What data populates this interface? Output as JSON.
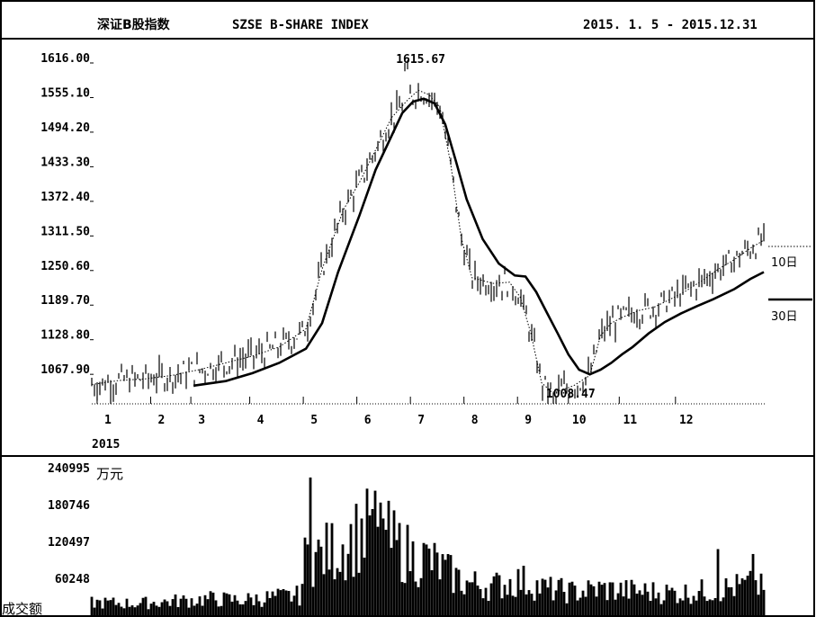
{
  "chart_data": [
    {
      "type": "line",
      "title_cn": "深证B股指数",
      "title_en": "SZSE B-SHARE INDEX",
      "date_range": "2015. 1. 5 - 2015.12.31",
      "year_label": "2015",
      "x_ticks": [
        "1",
        "2",
        "3",
        "4",
        "5",
        "6",
        "7",
        "8",
        "9",
        "10",
        "11",
        "12"
      ],
      "y_ticks": [
        "1616.00",
        "1555.10",
        "1494.20",
        "1433.30",
        "1372.40",
        "1311.50",
        "1250.60",
        "1189.70",
        "1128.80",
        "1067.90"
      ],
      "ylim": [
        1008,
        1616
      ],
      "annotations": [
        {
          "text": "1615.67",
          "month": 5.85,
          "value": 1615.67
        },
        {
          "text": "1008.47",
          "month": 8.65,
          "value": 1008.47
        }
      ],
      "series": [
        {
          "name": "10日",
          "style": "dotted",
          "x": [
            0.0,
            0.5,
            1.0,
            1.5,
            2.0,
            2.5,
            3.0,
            3.5,
            4.0,
            4.3,
            4.7,
            5.0,
            5.3,
            5.6,
            5.9,
            6.1,
            6.3,
            6.5,
            6.7,
            6.9,
            7.1,
            7.3,
            7.5,
            7.8,
            8.0,
            8.2,
            8.4,
            8.6,
            8.8,
            9.0,
            9.3,
            9.5,
            9.7,
            9.9,
            10.2,
            10.5,
            10.8,
            11.1,
            11.4,
            11.7,
            12.0,
            12.3,
            12.55
          ],
          "y": [
            1042,
            1049,
            1052,
            1058,
            1068,
            1080,
            1092,
            1108,
            1140,
            1245,
            1350,
            1398,
            1455,
            1512,
            1543,
            1560,
            1552,
            1530,
            1432,
            1300,
            1230,
            1225,
            1220,
            1222,
            1196,
            1132,
            1045,
            1028,
            1033,
            1040,
            1058,
            1128,
            1150,
            1160,
            1172,
            1178,
            1192,
            1207,
            1225,
            1245,
            1262,
            1282,
            1296
          ]
        },
        {
          "name": "30日",
          "style": "solid",
          "x": [
            1.9,
            2.5,
            3.0,
            3.5,
            4.0,
            4.3,
            4.6,
            5.0,
            5.3,
            5.6,
            5.8,
            6.0,
            6.2,
            6.4,
            6.6,
            6.8,
            7.0,
            7.3,
            7.6,
            7.9,
            8.1,
            8.3,
            8.5,
            8.7,
            8.9,
            9.1,
            9.3,
            9.5,
            9.7,
            9.9,
            10.1,
            10.4,
            10.7,
            11.0,
            11.3,
            11.6,
            12.0,
            12.3,
            12.55
          ],
          "y": [
            1040,
            1048,
            1062,
            1080,
            1105,
            1150,
            1240,
            1340,
            1420,
            1480,
            1520,
            1540,
            1545,
            1537,
            1500,
            1435,
            1368,
            1298,
            1255,
            1234,
            1232,
            1205,
            1168,
            1132,
            1095,
            1068,
            1060,
            1068,
            1080,
            1095,
            1108,
            1132,
            1152,
            1167,
            1180,
            1192,
            1210,
            1228,
            1240
          ]
        }
      ]
    },
    {
      "type": "bar",
      "ylabel_cn": "万元",
      "bottom_label": "成交额",
      "y_ticks": [
        "240995",
        "180746",
        "120497",
        "60248"
      ],
      "ylim": [
        0,
        240995
      ],
      "volume_profile": {
        "months": [
          0,
          0.8,
          1.5,
          2.2,
          2.8,
          3.3,
          3.9,
          4.0,
          4.2,
          4.6,
          5.0,
          5.3,
          5.6,
          6.0,
          6.3,
          6.7,
          7.0,
          7.5,
          8.0,
          8.5,
          9.0,
          9.5,
          10.0,
          10.5,
          11.0,
          11.5,
          12.0,
          12.4,
          12.55
        ],
        "values": [
          22000,
          20000,
          24000,
          28000,
          26000,
          30000,
          34000,
          105000,
          100000,
          115000,
          140000,
          150000,
          125000,
          100000,
          95000,
          70000,
          55000,
          50000,
          60000,
          45000,
          40000,
          45000,
          42000,
          40000,
          38000,
          42000,
          48000,
          52000,
          45000
        ]
      },
      "volume_spikes": [
        {
          "month": 4.1,
          "value": 225000
        },
        {
          "month": 5.2,
          "value": 163000
        },
        {
          "month": 5.45,
          "value": 158000
        },
        {
          "month": 11.7,
          "value": 108000
        },
        {
          "month": 12.35,
          "value": 100000
        }
      ]
    }
  ],
  "legend": {
    "ma10": "10日",
    "ma30": "30日"
  }
}
